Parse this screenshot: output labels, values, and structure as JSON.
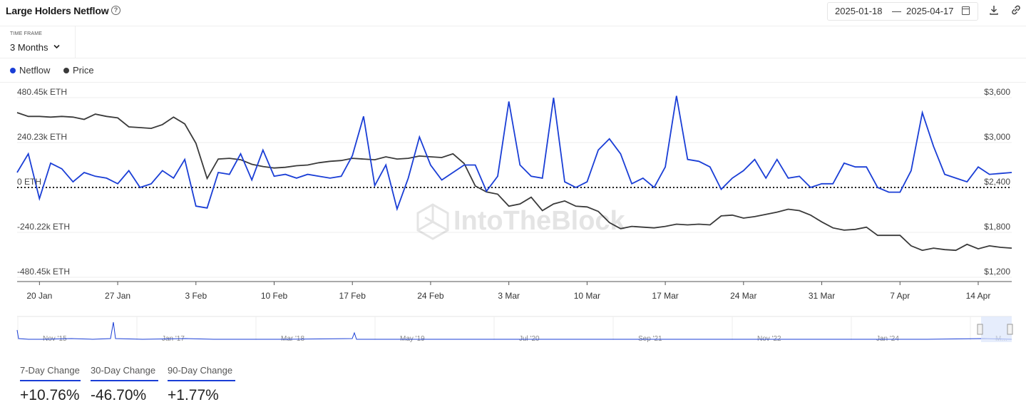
{
  "header": {
    "title": "Large Holders Netflow",
    "help_glyph": "?",
    "date_start": "2025-01-18",
    "date_sep": "—",
    "date_end": "2025-04-17"
  },
  "timeframe": {
    "label": "TIME FRAME",
    "value": "3 Months"
  },
  "legend": [
    {
      "label": "Netflow",
      "color": "#1a3ed6"
    },
    {
      "label": "Price",
      "color": "#3a3a3a"
    }
  ],
  "watermark": "IntoTheBlock",
  "chart_data": {
    "type": "line",
    "left_axis_ticks": [
      "480.45k ETH",
      "240.23k ETH",
      "0 ETH",
      "-240.22k ETH",
      "-480.45k ETH"
    ],
    "right_axis_ticks": [
      "$3,600",
      "$3,000",
      "$2,400",
      "$1,800",
      "$1,200"
    ],
    "x_ticks": [
      "20 Jan",
      "27 Jan",
      "3 Feb",
      "10 Feb",
      "17 Feb",
      "24 Feb",
      "3 Mar",
      "10 Mar",
      "17 Mar",
      "24 Mar",
      "31 Mar",
      "7 Apr",
      "14 Apr"
    ],
    "x_start": "2025-01-18",
    "x_end": "2025-04-17",
    "ylim_left": [
      -480.45,
      480.45
    ],
    "ylim_right": [
      1200,
      3600
    ],
    "grid": true,
    "series": [
      {
        "name": "Netflow",
        "axis": "left",
        "unit": "k ETH",
        "values": [
          80,
          180,
          -60,
          130,
          100,
          30,
          80,
          60,
          50,
          20,
          90,
          0,
          20,
          90,
          50,
          150,
          -100,
          -110,
          80,
          70,
          180,
          40,
          200,
          60,
          70,
          50,
          70,
          60,
          50,
          60,
          170,
          380,
          10,
          120,
          -115,
          50,
          270,
          120,
          40,
          80,
          120,
          120,
          -20,
          60,
          460,
          120,
          60,
          50,
          480,
          30,
          0,
          30,
          200,
          260,
          180,
          20,
          50,
          0,
          110,
          490,
          150,
          140,
          110,
          -10,
          50,
          90,
          150,
          50,
          150,
          50,
          60,
          0,
          20,
          20,
          130,
          110,
          110,
          0,
          -25,
          -25,
          90,
          400,
          220,
          70,
          50,
          30,
          110,
          70,
          75,
          80
        ]
      },
      {
        "name": "Price",
        "axis": "right",
        "unit": "USD",
        "values": [
          3400,
          3350,
          3350,
          3340,
          3350,
          3340,
          3310,
          3380,
          3350,
          3330,
          3210,
          3200,
          3190,
          3240,
          3340,
          3250,
          2990,
          2520,
          2780,
          2790,
          2770,
          2710,
          2680,
          2660,
          2670,
          2690,
          2700,
          2730,
          2750,
          2760,
          2790,
          2780,
          2770,
          2810,
          2780,
          2790,
          2820,
          2810,
          2800,
          2850,
          2720,
          2420,
          2340,
          2310,
          2150,
          2180,
          2270,
          2090,
          2180,
          2220,
          2150,
          2140,
          2080,
          1930,
          1850,
          1880,
          1870,
          1860,
          1880,
          1910,
          1900,
          1910,
          1900,
          2020,
          2030,
          1990,
          2010,
          2040,
          2070,
          2110,
          2090,
          2030,
          1940,
          1860,
          1830,
          1840,
          1870,
          1760,
          1760,
          1760,
          1620,
          1560,
          1590,
          1570,
          1560,
          1640,
          1580,
          1620,
          1600,
          1590
        ]
      }
    ]
  },
  "navigator": {
    "labels": [
      "Nov '15",
      "Jan '17",
      "Mar '18",
      "May '19",
      "Jul '20",
      "Sep '21",
      "Nov '22",
      "Jan '24",
      "M..."
    ]
  },
  "changes": [
    {
      "label": "7-Day Change",
      "value": "+10.76%"
    },
    {
      "label": "30-Day Change",
      "value": "-46.70%"
    },
    {
      "label": "90-Day Change",
      "value": "+1.77%"
    }
  ]
}
